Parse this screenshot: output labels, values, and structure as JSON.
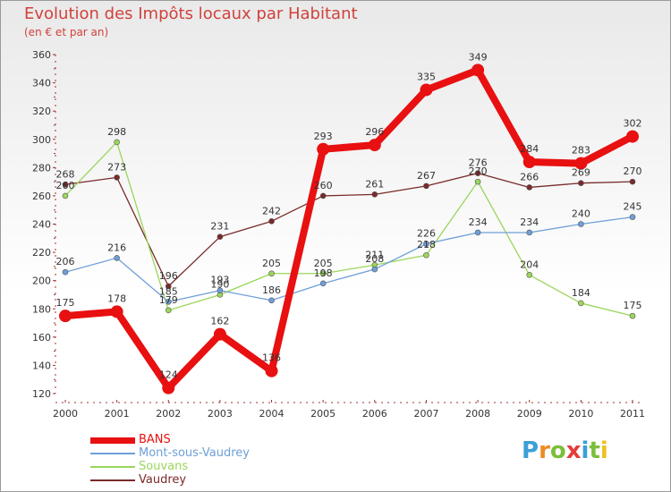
{
  "header": {
    "title": "Evolution des Impôts locaux par Habitant",
    "subtitle": "(en € et par an)"
  },
  "logo": {
    "text": "Proxiti",
    "letters": [
      "P",
      "r",
      "o",
      "x",
      "i",
      "t",
      "i"
    ],
    "colors": [
      "#3aa0d8",
      "#f08a24",
      "#7bbf3a",
      "#e43c3c",
      "#3aa0d8",
      "#7bbf3a",
      "#f0c020"
    ]
  },
  "chart_data": {
    "type": "line",
    "title": "Evolution des Impôts locaux par Habitant",
    "subtitle": "(en € et par an)",
    "xlabel": "",
    "ylabel": "",
    "ylim": [
      120,
      360
    ],
    "yticks": [
      120,
      140,
      160,
      180,
      200,
      220,
      240,
      260,
      280,
      300,
      320,
      340,
      360
    ],
    "categories": [
      "2000",
      "2001",
      "2002",
      "2003",
      "2004",
      "2005",
      "2006",
      "2007",
      "2008",
      "2009",
      "2010",
      "2011"
    ],
    "series": [
      {
        "name": "BANS",
        "color": "#e81010",
        "values": [
          175,
          178,
          124,
          162,
          136,
          293,
          296,
          335,
          349,
          284,
          283,
          302
        ]
      },
      {
        "name": "Mont-sous-Vaudrey",
        "color": "#6f9fd8",
        "values": [
          206,
          216,
          185,
          193,
          186,
          198,
          208,
          226,
          234,
          234,
          240,
          245
        ]
      },
      {
        "name": "Souvans",
        "color": "#9bd65a",
        "values": [
          260,
          298,
          179,
          190,
          205,
          205,
          211,
          218,
          270,
          204,
          184,
          175
        ]
      },
      {
        "name": "Vaudrey",
        "color": "#7a2a2a",
        "values": [
          268,
          273,
          196,
          231,
          242,
          260,
          261,
          267,
          276,
          266,
          269,
          270
        ]
      }
    ],
    "legend_position": "bottom-left",
    "grid": false
  }
}
